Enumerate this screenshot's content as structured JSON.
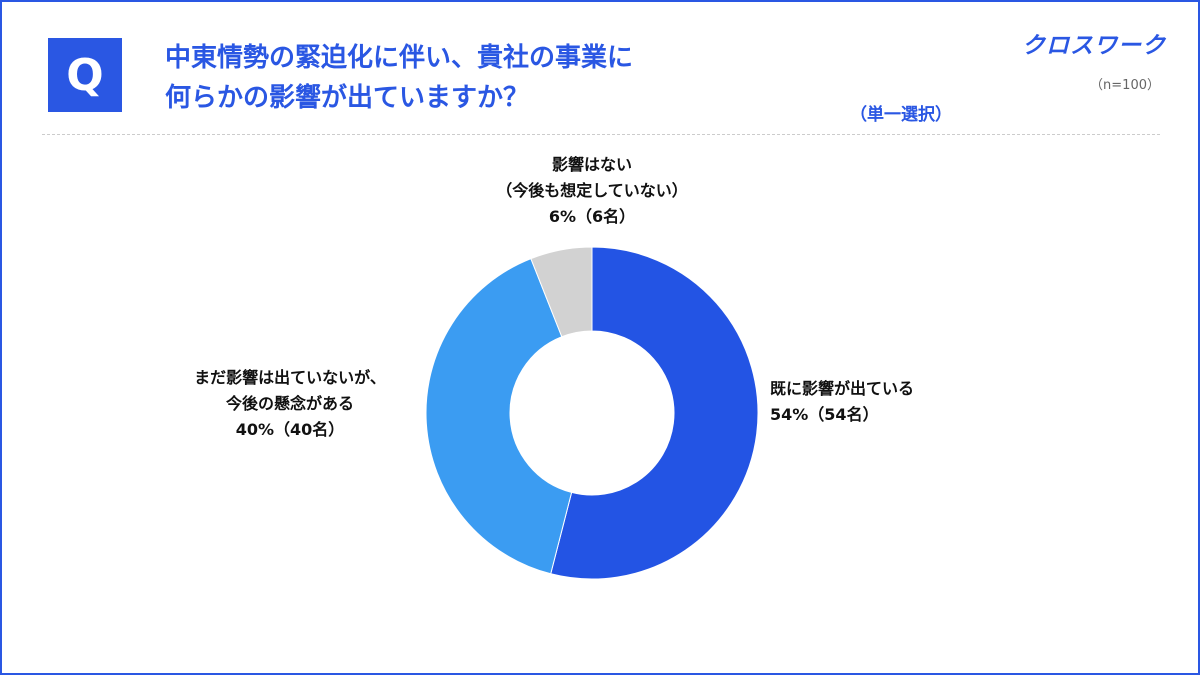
{
  "badge": "Q",
  "question": {
    "line1": "中東情勢の緊迫化に伴い、貴社の事業に",
    "line2": "何らかの影響が出ていますか？"
  },
  "logo": "クロスワーク",
  "sample_size": "（n=100）",
  "select_type": "（単一選択）",
  "chart_data": {
    "type": "pie",
    "donut": true,
    "sample": "（n=100）",
    "categories": [
      "既に影響が出ている",
      "まだ影響は出ていないが、今後の懸念がある",
      "影響はない（今後も想定していない）"
    ],
    "values": [
      54,
      40,
      6
    ],
    "counts": [
      54,
      40,
      6
    ],
    "colors": [
      "#2354e4",
      "#3b9cf2",
      "#d2d2d2"
    ],
    "labels": [
      {
        "lines": [
          "既に影響が出ている"
        ],
        "value_text": "54%（54名）"
      },
      {
        "lines": [
          "まだ影響は出ていないが、",
          "今後の懸念がある"
        ],
        "value_text": "40%（40名）"
      },
      {
        "lines": [
          "影響はない",
          "（今後も想定していない）"
        ],
        "value_text": "6%（6名）"
      }
    ]
  }
}
